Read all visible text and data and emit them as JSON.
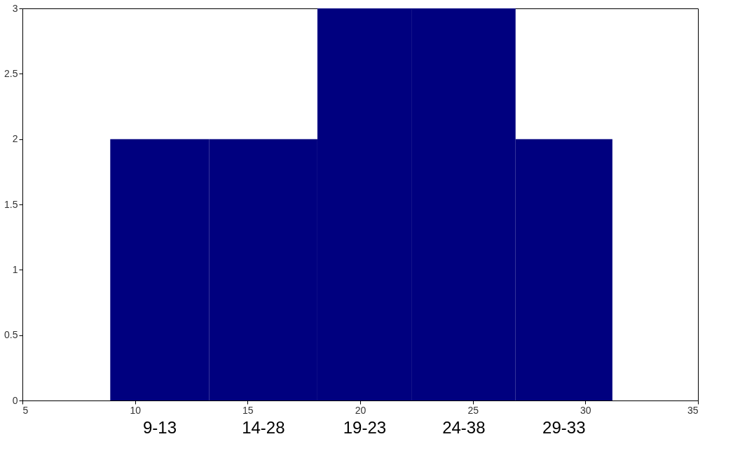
{
  "chart_data": {
    "type": "histogram",
    "bins": [
      8.9,
      13.3,
      18.1,
      22.3,
      26.9,
      31.2
    ],
    "values": [
      2,
      2,
      3,
      3,
      2
    ],
    "color": "#00007f",
    "xlim": [
      5,
      35
    ],
    "xticks": [
      5,
      10,
      15,
      20,
      25,
      30,
      35
    ],
    "ylim": [
      0,
      3
    ],
    "yticks": [
      0,
      0.5,
      1,
      1.5,
      2,
      2.5,
      3
    ],
    "grid": false,
    "annotations": [
      "9-13",
      "14-28",
      "19-23",
      "24-38",
      "29-33"
    ]
  }
}
